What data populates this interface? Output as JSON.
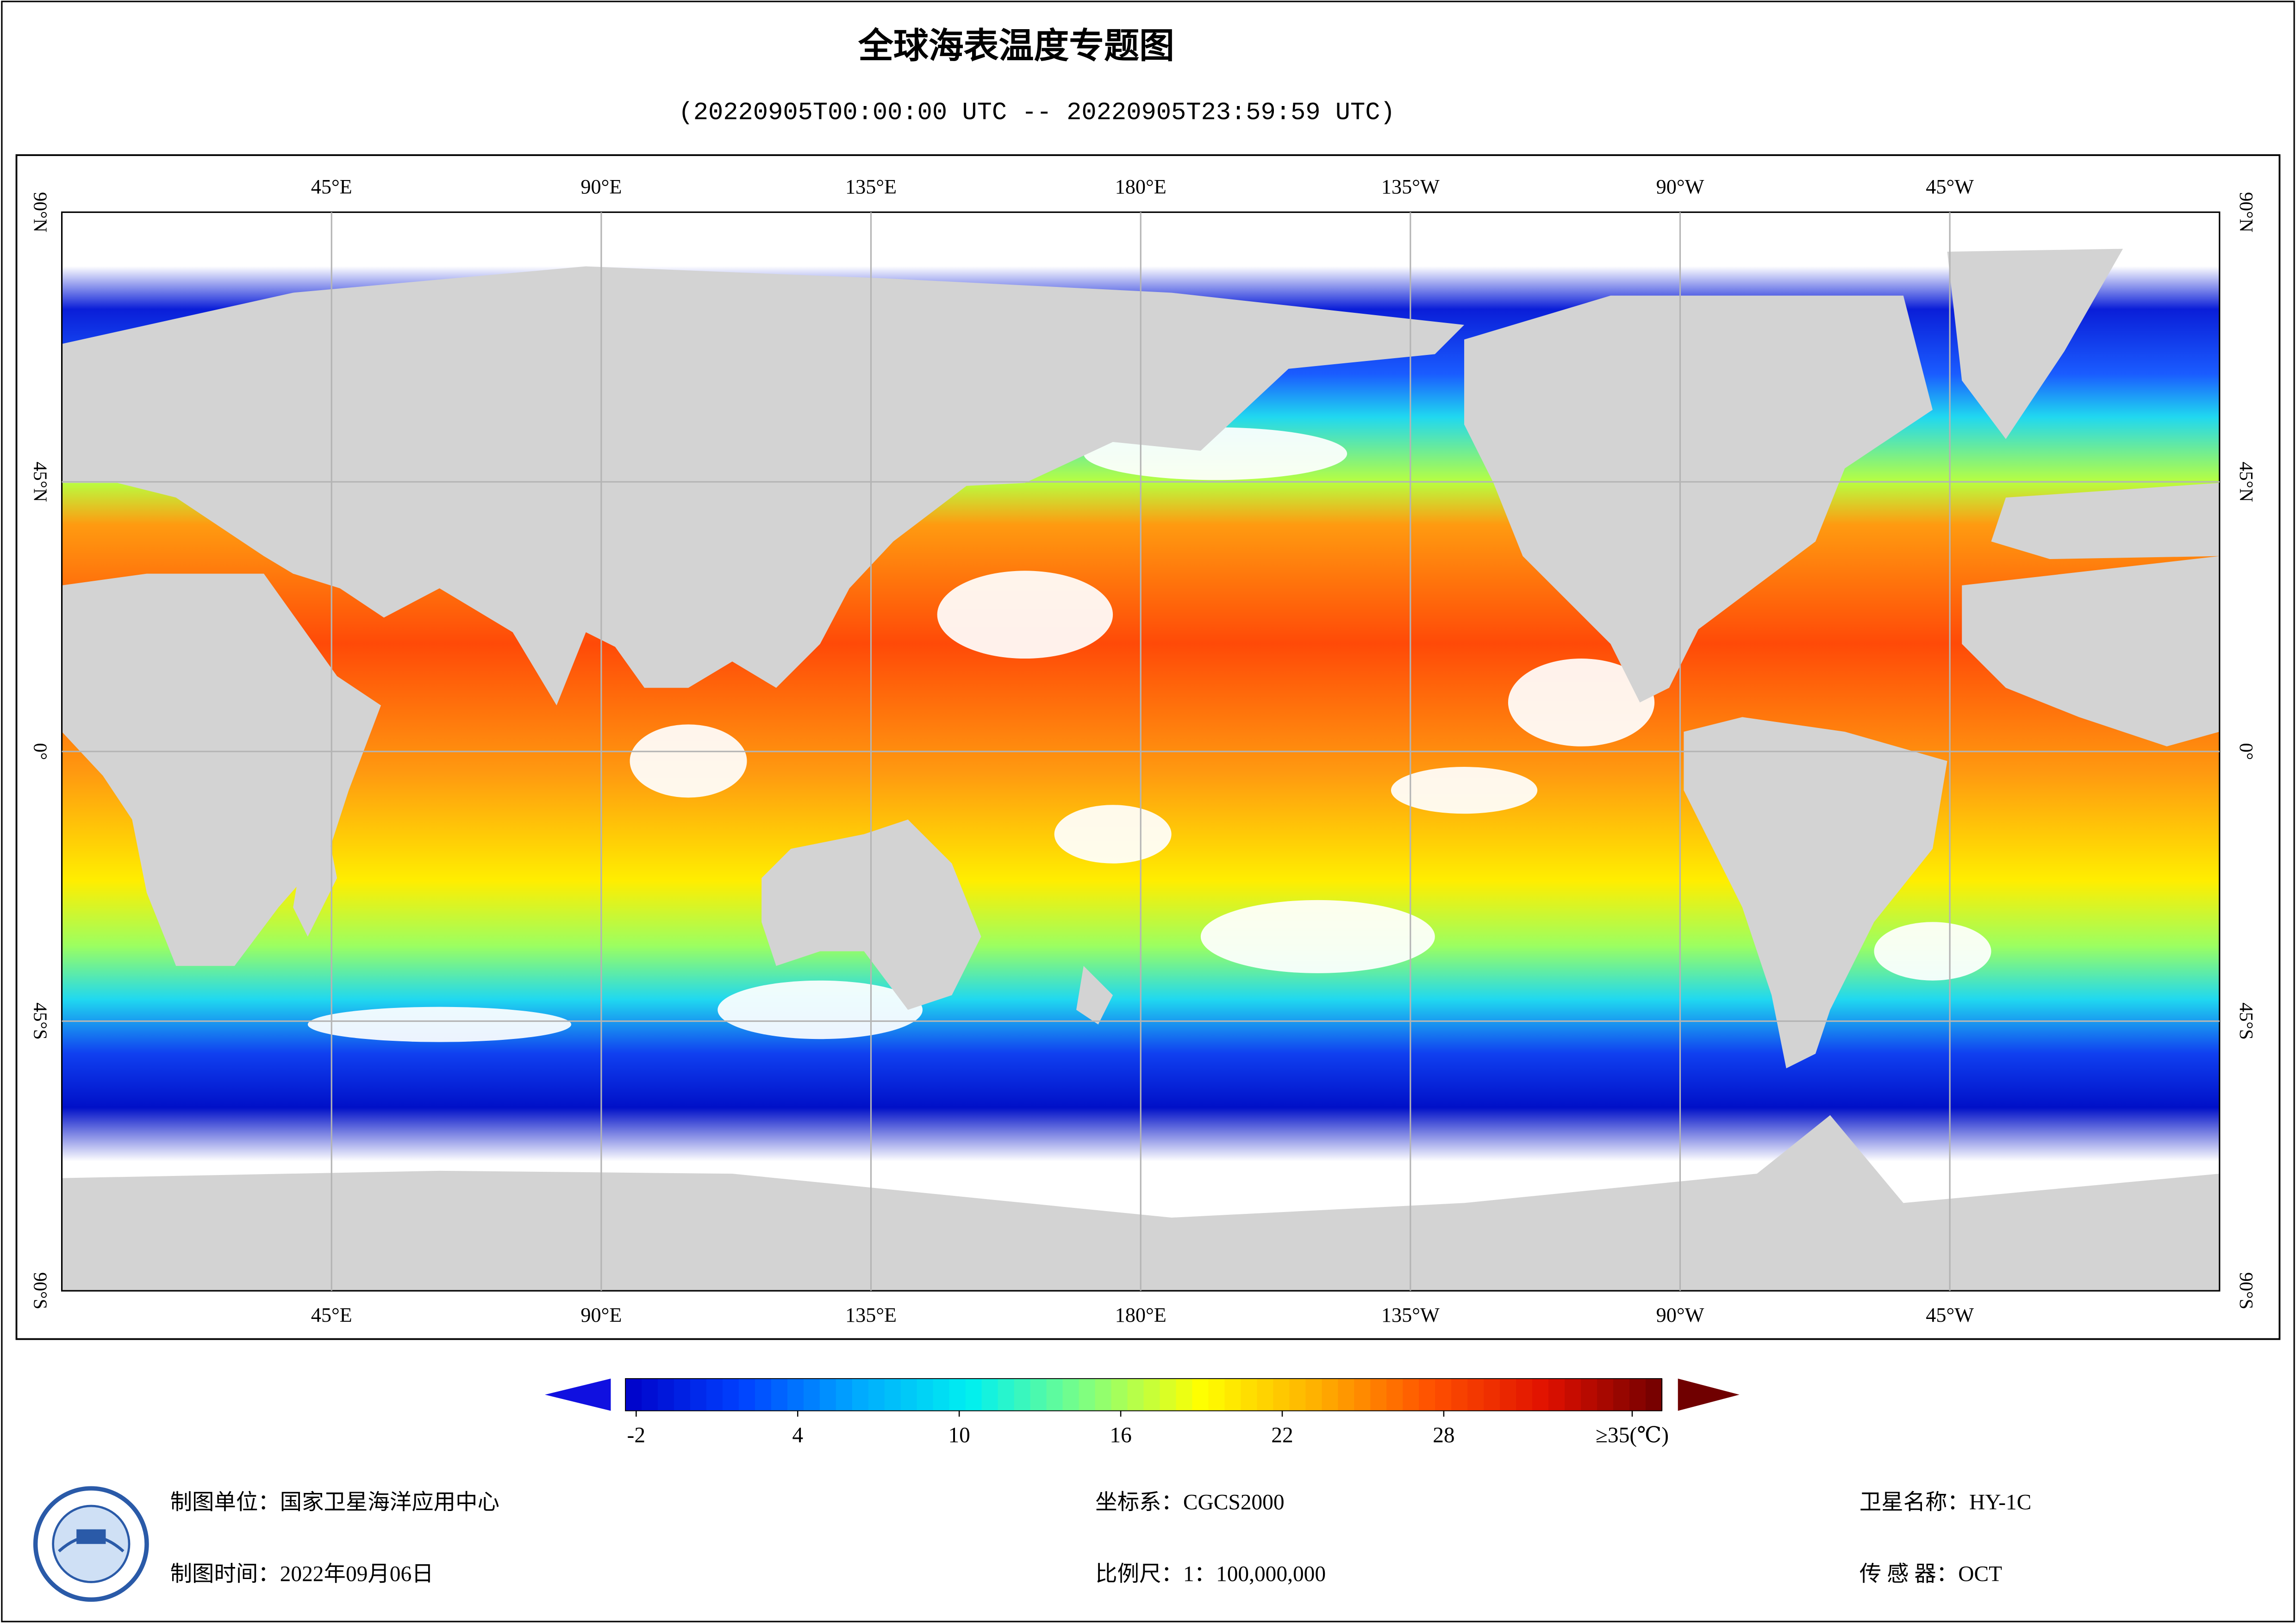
{
  "header": {
    "title": "全球海表温度专题图",
    "subtitle": "(20220905T00:00:00 UTC -- 20220905T23:59:59 UTC)"
  },
  "map": {
    "lon_labels": [
      "45°E",
      "90°E",
      "135°E",
      "180°E",
      "135°W",
      "90°W",
      "45°W"
    ],
    "lat_labels": [
      "90°N",
      "45°N",
      "0°",
      "45°S",
      "90°S"
    ]
  },
  "colorbar": {
    "range": [
      -2.4,
      36.1
    ],
    "ticks": [
      -2,
      4,
      10,
      16,
      22,
      28,
      {
        "value": 35,
        "label": "≥35(℃)"
      }
    ],
    "colors": [
      "#0000c8",
      "#0040ff",
      "#00a8ff",
      "#00f0f0",
      "#80ff80",
      "#ffff00",
      "#ffb000",
      "#ff5000",
      "#e01000",
      "#700000"
    ]
  },
  "footer": {
    "unit": "制图单位：国家卫星海洋应用中心",
    "date": "制图时间：2022年09月06日",
    "crs": "坐标系：CGCS2000",
    "scale": "比例尺：1：100,000,000",
    "satellite": "卫星名称：HY-1C",
    "sensor": "传 感 器：OCT"
  }
}
